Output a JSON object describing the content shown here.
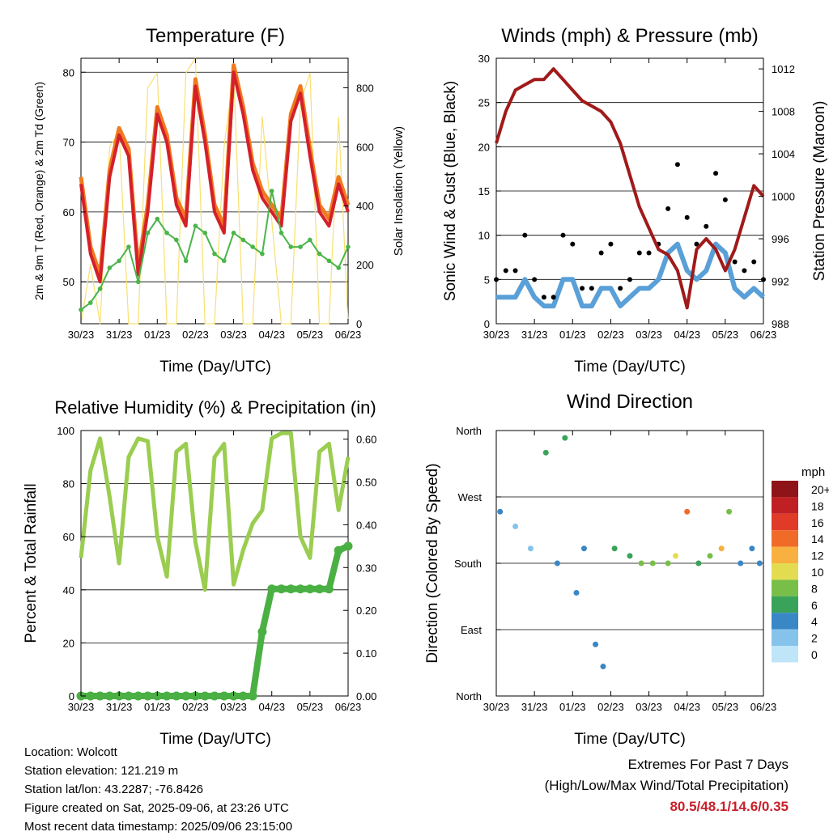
{
  "colors": {
    "temp2m": "#d4202a",
    "temp9m": "#f07a1e",
    "dew": "#4ab54a",
    "solar": "#f8e070",
    "gust": "#000000",
    "wind": "#5aa0d8",
    "pressure": "#a01a1a",
    "rh": "#9acd50",
    "precip": "#4ab043",
    "grid": "#000000"
  },
  "x_ticks": [
    "30/23",
    "31/23",
    "01/23",
    "02/23",
    "03/23",
    "04/23",
    "05/23",
    "06/23"
  ],
  "charts": {
    "temperature": {
      "title": "Temperature (F)",
      "xlabel": "Time (Day/UTC)",
      "ylabel_left": "2m & 9m T (Red, Orange) & 2m Td (Green)",
      "ylabel_right": "Solar Insolation (Yellow)",
      "left_ticks": [
        "50",
        "60",
        "70",
        "80"
      ],
      "right_ticks": [
        "0",
        "200",
        "400",
        "600",
        "800"
      ]
    },
    "winds": {
      "title": "Winds (mph) & Pressure (mb)",
      "xlabel": "Time (Day/UTC)",
      "ylabel_left": "Sonic Wind & Gust (Blue, Black)",
      "ylabel_right": "Station Pressure (Maroon)",
      "left_ticks": [
        "0",
        "5",
        "10",
        "15",
        "20",
        "25",
        "30"
      ],
      "right_ticks": [
        "988",
        "992",
        "996",
        "1000",
        "1004",
        "1008",
        "1012"
      ]
    },
    "humidity": {
      "title": "Relative Humidity (%) & Precipitation (in)",
      "xlabel": "Time (Day/UTC)",
      "ylabel_left": "Percent & Total Rainfall",
      "left_ticks": [
        "0",
        "20",
        "40",
        "60",
        "80",
        "100"
      ],
      "right_ticks": [
        "0.00",
        "0.10",
        "0.20",
        "0.30",
        "0.40",
        "0.50",
        "0.60"
      ]
    },
    "direction": {
      "title": "Wind Direction",
      "xlabel": "Time (Day/UTC)",
      "ylabel_left": "Direction (Colored By Speed)",
      "dir_ticks": [
        "North",
        "East",
        "South",
        "West",
        "North"
      ],
      "legend_title": "mph",
      "legend": [
        {
          "label": "0",
          "color": "#bfe6f8"
        },
        {
          "label": "2",
          "color": "#86c3ea"
        },
        {
          "label": "4",
          "color": "#3a87c6"
        },
        {
          "label": "6",
          "color": "#3aa35a"
        },
        {
          "label": "8",
          "color": "#78bf4a"
        },
        {
          "label": "10",
          "color": "#e4dc50"
        },
        {
          "label": "12",
          "color": "#f8b040"
        },
        {
          "label": "14",
          "color": "#f06a28"
        },
        {
          "label": "16",
          "color": "#e03a28"
        },
        {
          "label": "18",
          "color": "#c02024"
        },
        {
          "label": "20+",
          "color": "#8e1418"
        }
      ]
    }
  },
  "footer": {
    "location": "Location: Wolcott",
    "elevation": "Station elevation: 121.219 m",
    "latlon": "Station lat/lon: 43.2287; -76.8426",
    "created": "Figure created on Sat, 2025-09-06, at 23:26 UTC",
    "recent": "Most recent data timestamp: 2025/09/06 23:15:00"
  },
  "extremes": {
    "line1": "Extremes For Past 7 Days",
    "line2": "(High/Low/Max Wind/Total Precipitation)",
    "values": "80.5/48.1/14.6/0.35"
  },
  "chart_data": [
    {
      "type": "line",
      "title": "Temperature (F)",
      "xlabel": "Time (Day/UTC)",
      "ylabel": "2m & 9m T (Red, Orange) & 2m Td (Green)",
      "y2label": "Solar Insolation (Yellow)",
      "xlim": [
        0,
        7
      ],
      "ylim": [
        44,
        82
      ],
      "y2lim": [
        0,
        900
      ],
      "x": [
        0,
        0.25,
        0.5,
        0.75,
        1,
        1.25,
        1.5,
        1.75,
        2,
        2.25,
        2.5,
        2.75,
        3,
        3.25,
        3.5,
        3.75,
        4,
        4.25,
        4.5,
        4.75,
        5,
        5.25,
        5.5,
        5.75,
        6,
        6.25,
        6.5,
        6.75,
        7
      ],
      "series": [
        {
          "name": "2m T",
          "axis": "left",
          "values": [
            64,
            54,
            50,
            65,
            71,
            68,
            51,
            60,
            74,
            70,
            61,
            58,
            78,
            70,
            60,
            57,
            80,
            74,
            66,
            62,
            60,
            58,
            73,
            77,
            68,
            60,
            58,
            64,
            60
          ]
        },
        {
          "name": "2m Td",
          "axis": "left",
          "values": [
            46,
            47,
            49,
            52,
            53,
            55,
            50,
            57,
            59,
            57,
            56,
            53,
            58,
            57,
            54,
            53,
            57,
            56,
            55,
            54,
            63,
            57,
            55,
            55,
            56,
            54,
            53,
            52,
            55
          ]
        },
        {
          "name": "Solar Insolation",
          "axis": "right",
          "values": [
            0,
            200,
            0,
            600,
            650,
            0,
            0,
            800,
            850,
            0,
            0,
            850,
            900,
            0,
            0,
            600,
            850,
            0,
            0,
            700,
            350,
            0,
            0,
            750,
            850,
            0,
            0,
            700,
            0
          ]
        }
      ]
    },
    {
      "type": "line",
      "title": "Winds (mph) & Pressure (mb)",
      "xlabel": "Time (Day/UTC)",
      "ylabel": "Sonic Wind & Gust (Blue, Black)",
      "y2label": "Station Pressure (Maroon)",
      "xlim": [
        0,
        7
      ],
      "ylim": [
        0,
        30
      ],
      "y2lim": [
        988,
        1013
      ],
      "x": [
        0,
        0.25,
        0.5,
        0.75,
        1,
        1.25,
        1.5,
        1.75,
        2,
        2.25,
        2.5,
        2.75,
        3,
        3.25,
        3.5,
        3.75,
        4,
        4.25,
        4.5,
        4.75,
        5,
        5.25,
        5.5,
        5.75,
        6,
        6.25,
        6.5,
        6.75,
        7
      ],
      "series": [
        {
          "name": "Gust",
          "axis": "left",
          "values": [
            5,
            6,
            6,
            10,
            5,
            3,
            3,
            10,
            9,
            4,
            4,
            8,
            9,
            4,
            5,
            8,
            8,
            9,
            13,
            18,
            12,
            9,
            11,
            17,
            14,
            7,
            6,
            7,
            5
          ]
        },
        {
          "name": "Wind",
          "axis": "left",
          "values": [
            3,
            3,
            3,
            5,
            3,
            2,
            2,
            5,
            5,
            2,
            2,
            4,
            4,
            2,
            3,
            4,
            4,
            5,
            8,
            9,
            6,
            5,
            6,
            9,
            8,
            4,
            3,
            4,
            3
          ]
        },
        {
          "name": "Station Pressure",
          "axis": "right",
          "values": [
            1005,
            1008,
            1010,
            1010.5,
            1011,
            1011,
            1012,
            1011,
            1010,
            1009,
            1008.5,
            1008,
            1007,
            1005,
            1002,
            999,
            997,
            995,
            994.5,
            993,
            989.5,
            995,
            996,
            995,
            993,
            995,
            998,
            1001,
            1000
          ]
        }
      ]
    },
    {
      "type": "line",
      "title": "Relative Humidity (%) & Precipitation (in)",
      "xlabel": "Time (Day/UTC)",
      "ylabel": "Percent & Total Rainfall",
      "xlim": [
        0,
        7
      ],
      "ylim": [
        0,
        100
      ],
      "y2lim": [
        0,
        0.62
      ],
      "x": [
        0,
        0.25,
        0.5,
        0.75,
        1,
        1.25,
        1.5,
        1.75,
        2,
        2.25,
        2.5,
        2.75,
        3,
        3.25,
        3.5,
        3.75,
        4,
        4.25,
        4.5,
        4.75,
        5,
        5.25,
        5.5,
        5.75,
        6,
        6.25,
        6.5,
        6.75,
        7
      ],
      "series": [
        {
          "name": "Relative Humidity",
          "axis": "left",
          "values": [
            52,
            85,
            97,
            75,
            50,
            90,
            97,
            96,
            60,
            45,
            92,
            95,
            58,
            40,
            90,
            95,
            42,
            55,
            65,
            70,
            97,
            99,
            99,
            60,
            52,
            92,
            95,
            70,
            90
          ]
        },
        {
          "name": "Total Rainfall",
          "axis": "right",
          "values": [
            0,
            0,
            0,
            0,
            0,
            0,
            0,
            0,
            0,
            0,
            0,
            0,
            0,
            0,
            0,
            0,
            0,
            0,
            0,
            0.15,
            0.25,
            0.25,
            0.25,
            0.25,
            0.25,
            0.25,
            0.25,
            0.34,
            0.35
          ]
        }
      ]
    },
    {
      "type": "scatter",
      "title": "Wind Direction",
      "xlabel": "Time (Day/UTC)",
      "ylabel": "Direction (Colored By Speed)",
      "xlim": [
        0,
        7
      ],
      "ylim": [
        0,
        360
      ],
      "x": [
        0.1,
        0.5,
        0.9,
        1.3,
        1.6,
        1.8,
        2.1,
        2.3,
        2.6,
        2.8,
        3.1,
        3.5,
        3.8,
        4.1,
        4.5,
        4.7,
        5.0,
        5.3,
        5.6,
        5.9,
        6.1,
        6.4,
        6.7,
        6.9
      ],
      "direction": [
        250,
        230,
        200,
        330,
        180,
        350,
        140,
        200,
        70,
        40,
        200,
        190,
        180,
        180,
        180,
        190,
        250,
        180,
        190,
        200,
        250,
        180,
        200,
        180
      ],
      "speed": [
        3,
        2,
        2,
        5,
        3,
        6,
        4,
        4,
        3,
        4,
        5,
        6,
        7,
        8,
        8,
        10,
        14,
        6,
        8,
        12,
        8,
        4,
        3,
        3
      ]
    }
  ]
}
